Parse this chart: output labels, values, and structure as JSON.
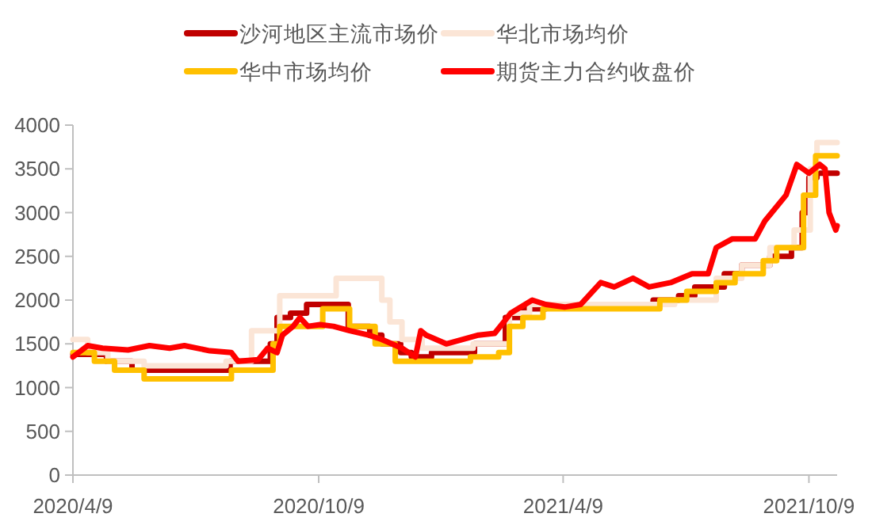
{
  "chart_data": {
    "type": "line",
    "legend": "top",
    "line_style": "solid",
    "grid": false,
    "xlim": [
      "2020-04-09",
      "2021-10-30"
    ],
    "xticks": [
      {
        "value": "2020-04-09",
        "label": "2020/4/9"
      },
      {
        "value": "2020-10-09",
        "label": "2020/10/9"
      },
      {
        "value": "2021-04-09",
        "label": "2021/4/9"
      },
      {
        "value": "2021-10-09",
        "label": "2021/10/9"
      }
    ],
    "ylim": [
      0,
      4000
    ],
    "yticks": [
      0,
      500,
      1000,
      1500,
      2000,
      2500,
      3000,
      3500,
      4000
    ],
    "series": [
      {
        "name": "沙河地区主流市场价",
        "type": "step",
        "color": "#c00000",
        "x": [
          "2020-04-09",
          "2020-05-04",
          "2020-05-23",
          "2020-08-04",
          "2020-09-03",
          "2020-09-08",
          "2020-09-18",
          "2020-09-30",
          "2020-10-31",
          "2020-11-16",
          "2020-11-25",
          "2020-12-09",
          "2020-12-17",
          "2021-01-01",
          "2021-02-02",
          "2021-02-25",
          "2021-03-09",
          "2021-03-27",
          "2021-06-15",
          "2021-07-04",
          "2021-07-16",
          "2021-08-07",
          "2021-08-20",
          "2021-09-10",
          "2021-09-26",
          "2021-10-04",
          "2021-10-09",
          "2021-10-15",
          "2021-10-30"
        ],
        "values": [
          1380,
          1300,
          1200,
          1300,
          1500,
          1800,
          1850,
          1950,
          1700,
          1600,
          1500,
          1400,
          1350,
          1400,
          1500,
          1800,
          1900,
          1950,
          2000,
          2050,
          2150,
          2300,
          2400,
          2500,
          2600,
          3000,
          3400,
          3450,
          3450
        ]
      },
      {
        "name": "华北市场均价",
        "type": "step",
        "color": "#fbe5d6",
        "x": [
          "2020-04-09",
          "2020-04-20",
          "2020-05-05",
          "2020-06-01",
          "2020-08-01",
          "2020-08-20",
          "2020-09-10",
          "2020-10-22",
          "2020-11-25",
          "2020-12-01",
          "2020-12-10",
          "2020-12-25",
          "2021-02-01",
          "2021-02-28",
          "2021-03-15",
          "2021-07-01",
          "2021-08-01",
          "2021-08-20",
          "2021-09-10",
          "2021-09-28",
          "2021-10-10",
          "2021-10-15",
          "2021-10-30"
        ],
        "values": [
          1550,
          1400,
          1300,
          1250,
          1300,
          1650,
          2050,
          2250,
          2000,
          1750,
          1550,
          1450,
          1500,
          1850,
          1950,
          2000,
          2250,
          2400,
          2600,
          2800,
          3500,
          3800,
          3800
        ]
      },
      {
        "name": "华中市场均价",
        "type": "step",
        "color": "#ffc000",
        "x": [
          "2020-04-09",
          "2020-04-25",
          "2020-05-10",
          "2020-06-01",
          "2020-08-05",
          "2020-09-05",
          "2020-09-10",
          "2020-10-12",
          "2020-11-01",
          "2020-11-20",
          "2020-12-05",
          "2021-01-30",
          "2021-02-20",
          "2021-02-28",
          "2021-03-10",
          "2021-03-25",
          "2021-06-20",
          "2021-07-10",
          "2021-08-01",
          "2021-08-15",
          "2021-09-05",
          "2021-09-15",
          "2021-10-05",
          "2021-10-14",
          "2021-10-30"
        ],
        "values": [
          1400,
          1300,
          1200,
          1100,
          1200,
          1500,
          1700,
          1900,
          1700,
          1500,
          1300,
          1350,
          1400,
          1700,
          1800,
          1900,
          2000,
          2100,
          2200,
          2300,
          2450,
          2600,
          3200,
          3650,
          3650
        ]
      },
      {
        "name": "期货主力合约收盘价",
        "color": "#ff0000",
        "x": [
          "2020-04-09",
          "2020-04-20",
          "2020-05-01",
          "2020-05-20",
          "2020-06-05",
          "2020-06-20",
          "2020-07-01",
          "2020-07-20",
          "2020-08-05",
          "2020-08-10",
          "2020-08-25",
          "2020-09-01",
          "2020-09-08",
          "2020-09-12",
          "2020-09-20",
          "2020-09-25",
          "2020-10-01",
          "2020-10-10",
          "2020-10-20",
          "2020-11-01",
          "2020-11-15",
          "2020-11-25",
          "2020-12-10",
          "2020-12-20",
          "2020-12-24",
          "2020-12-28",
          "2021-01-12",
          "2021-02-05",
          "2021-02-17",
          "2021-03-01",
          "2021-03-17",
          "2021-03-27",
          "2021-04-10",
          "2021-04-22",
          "2021-05-07",
          "2021-05-17",
          "2021-05-31",
          "2021-06-12",
          "2021-06-28",
          "2021-07-14",
          "2021-07-26",
          "2021-08-01",
          "2021-08-13",
          "2021-08-30",
          "2021-09-06",
          "2021-09-22",
          "2021-09-30",
          "2021-10-09",
          "2021-10-17",
          "2021-10-21",
          "2021-10-24",
          "2021-10-29",
          "2021-10-30"
        ],
        "values": [
          1350,
          1480,
          1450,
          1430,
          1480,
          1450,
          1480,
          1420,
          1400,
          1300,
          1320,
          1450,
          1400,
          1600,
          1700,
          1800,
          1700,
          1720,
          1700,
          1650,
          1600,
          1550,
          1450,
          1350,
          1650,
          1600,
          1500,
          1600,
          1620,
          1850,
          2000,
          1950,
          1920,
          1950,
          2200,
          2150,
          2250,
          2150,
          2200,
          2300,
          2300,
          2600,
          2700,
          2700,
          2900,
          3200,
          3550,
          3450,
          3550,
          3500,
          3000,
          2800,
          2850
        ]
      }
    ]
  }
}
